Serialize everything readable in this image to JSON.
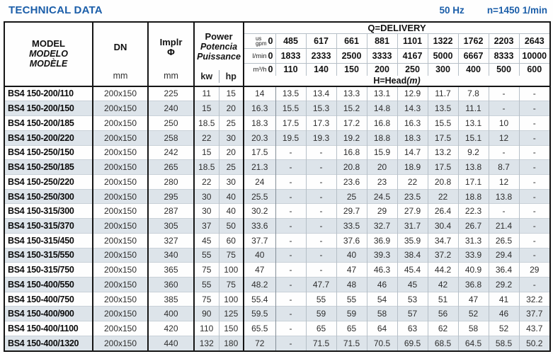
{
  "title": "TECHNICAL DATA",
  "frequency": "50 Hz",
  "speed": "n=1450 1/min",
  "colors": {
    "accent_blue": "#1b5ea9",
    "row_alt_bg": "#dde4ea",
    "border_dark": "#151515",
    "border_light": "#b6bfc7"
  },
  "table": {
    "head": {
      "model_lines": [
        "MODEL",
        "MODELO",
        "MODÈLE"
      ],
      "dn_label": "DN",
      "implr_label": "Implr",
      "implr_symbol": "Φ",
      "power_lines": [
        "Power",
        "Potencia",
        "Puissance"
      ],
      "units": {
        "dn": "mm",
        "implr": "mm",
        "kw": "kw",
        "hp": "hp"
      },
      "delivery_title": "Q=DELIVERY",
      "unit_rows": [
        {
          "label_lines": [
            "us",
            "gpm"
          ],
          "zero": "0",
          "values": [
            "485",
            "617",
            "661",
            "881",
            "1101",
            "1322",
            "1762",
            "2203",
            "2643"
          ]
        },
        {
          "label_lines": [
            "l/min"
          ],
          "zero": "0",
          "values": [
            "1833",
            "2333",
            "2500",
            "3333",
            "4167",
            "5000",
            "6667",
            "8333",
            "10000"
          ]
        },
        {
          "label_lines": [
            "m³/h"
          ],
          "zero": "0",
          "values": [
            "110",
            "140",
            "150",
            "200",
            "250",
            "300",
            "400",
            "500",
            "600"
          ]
        }
      ],
      "head_label": "H=Head",
      "head_unit": "(m)"
    },
    "rows": [
      {
        "model": "BS4 150-200/110",
        "dn": "200x150",
        "implr": "225",
        "kw": "11",
        "hp": "15",
        "head": [
          "14",
          "13.5",
          "13.4",
          "13.3",
          "13.1",
          "12.9",
          "11.7",
          "7.8",
          "-",
          "-"
        ]
      },
      {
        "model": "BS4 150-200/150",
        "dn": "200x150",
        "implr": "240",
        "kw": "15",
        "hp": "20",
        "head": [
          "16.3",
          "15.5",
          "15.3",
          "15.2",
          "14.8",
          "14.3",
          "13.5",
          "11.1",
          "-",
          "-"
        ]
      },
      {
        "model": "BS4 150-200/185",
        "dn": "200x150",
        "implr": "250",
        "kw": "18.5",
        "hp": "25",
        "head": [
          "18.3",
          "17.5",
          "17.3",
          "17.2",
          "16.8",
          "16.3",
          "15.5",
          "13.1",
          "10",
          "-"
        ]
      },
      {
        "model": "BS4 150-200/220",
        "dn": "200x150",
        "implr": "258",
        "kw": "22",
        "hp": "30",
        "head": [
          "20.3",
          "19.5",
          "19.3",
          "19.2",
          "18.8",
          "18.3",
          "17.5",
          "15.1",
          "12",
          "-"
        ]
      },
      {
        "model": "BS4 150-250/150",
        "dn": "200x150",
        "implr": "242",
        "kw": "15",
        "hp": "20",
        "head": [
          "17.5",
          "-",
          "-",
          "16.8",
          "15.9",
          "14.7",
          "13.2",
          "9.2",
          "-",
          "-"
        ]
      },
      {
        "model": "BS4 150-250/185",
        "dn": "200x150",
        "implr": "265",
        "kw": "18.5",
        "hp": "25",
        "head": [
          "21.3",
          "-",
          "-",
          "20.8",
          "20",
          "18.9",
          "17.5",
          "13.8",
          "8.7",
          "-"
        ]
      },
      {
        "model": "BS4 150-250/220",
        "dn": "200x150",
        "implr": "280",
        "kw": "22",
        "hp": "30",
        "head": [
          "24",
          "-",
          "-",
          "23.6",
          "23",
          "22",
          "20.8",
          "17.1",
          "12",
          "-"
        ]
      },
      {
        "model": "BS4 150-250/300",
        "dn": "200x150",
        "implr": "295",
        "kw": "30",
        "hp": "40",
        "head": [
          "25.5",
          "-",
          "-",
          "25",
          "24.5",
          "23.5",
          "22",
          "18.8",
          "13.8",
          "-"
        ]
      },
      {
        "model": "BS4 150-315/300",
        "dn": "200x150",
        "implr": "287",
        "kw": "30",
        "hp": "40",
        "head": [
          "30.2",
          "-",
          "-",
          "29.7",
          "29",
          "27.9",
          "26.4",
          "22.3",
          "-",
          "-"
        ]
      },
      {
        "model": "BS4 150-315/370",
        "dn": "200x150",
        "implr": "305",
        "kw": "37",
        "hp": "50",
        "head": [
          "33.6",
          "-",
          "-",
          "33.5",
          "32.7",
          "31.7",
          "30.4",
          "26.7",
          "21.4",
          "-"
        ]
      },
      {
        "model": "BS4 150-315/450",
        "dn": "200x150",
        "implr": "327",
        "kw": "45",
        "hp": "60",
        "head": [
          "37.7",
          "-",
          "-",
          "37.6",
          "36.9",
          "35.9",
          "34.7",
          "31.3",
          "26.5",
          "-"
        ]
      },
      {
        "model": "BS4 150-315/550",
        "dn": "200x150",
        "implr": "340",
        "kw": "55",
        "hp": "75",
        "head": [
          "40",
          "-",
          "-",
          "40",
          "39.3",
          "38.4",
          "37.2",
          "33.9",
          "29.4",
          "-"
        ]
      },
      {
        "model": "BS4 150-315/750",
        "dn": "200x150",
        "implr": "365",
        "kw": "75",
        "hp": "100",
        "head": [
          "47",
          "-",
          "-",
          "47",
          "46.3",
          "45.4",
          "44.2",
          "40.9",
          "36.4",
          "29"
        ]
      },
      {
        "model": "BS4 150-400/550",
        "dn": "200x150",
        "implr": "360",
        "kw": "55",
        "hp": "75",
        "head": [
          "48.2",
          "-",
          "47.7",
          "48",
          "46",
          "45",
          "42",
          "36.8",
          "29.2",
          "-"
        ]
      },
      {
        "model": "BS4 150-400/750",
        "dn": "200x150",
        "implr": "385",
        "kw": "75",
        "hp": "100",
        "head": [
          "55.4",
          "-",
          "55",
          "55",
          "54",
          "53",
          "51",
          "47",
          "41",
          "32.2"
        ]
      },
      {
        "model": "BS4 150-400/900",
        "dn": "200x150",
        "implr": "400",
        "kw": "90",
        "hp": "125",
        "head": [
          "59.5",
          "-",
          "59",
          "59",
          "58",
          "57",
          "56",
          "52",
          "46",
          "37.7"
        ]
      },
      {
        "model": "BS4 150-400/1100",
        "dn": "200x150",
        "implr": "420",
        "kw": "110",
        "hp": "150",
        "head": [
          "65.5",
          "-",
          "65",
          "65",
          "64",
          "63",
          "62",
          "58",
          "52",
          "43.7"
        ]
      },
      {
        "model": "BS4 150-400/1320",
        "dn": "200x150",
        "implr": "440",
        "kw": "132",
        "hp": "180",
        "head": [
          "72",
          "-",
          "71.5",
          "71.5",
          "70.5",
          "69.5",
          "68.5",
          "64.5",
          "58.5",
          "50.2"
        ]
      }
    ]
  }
}
